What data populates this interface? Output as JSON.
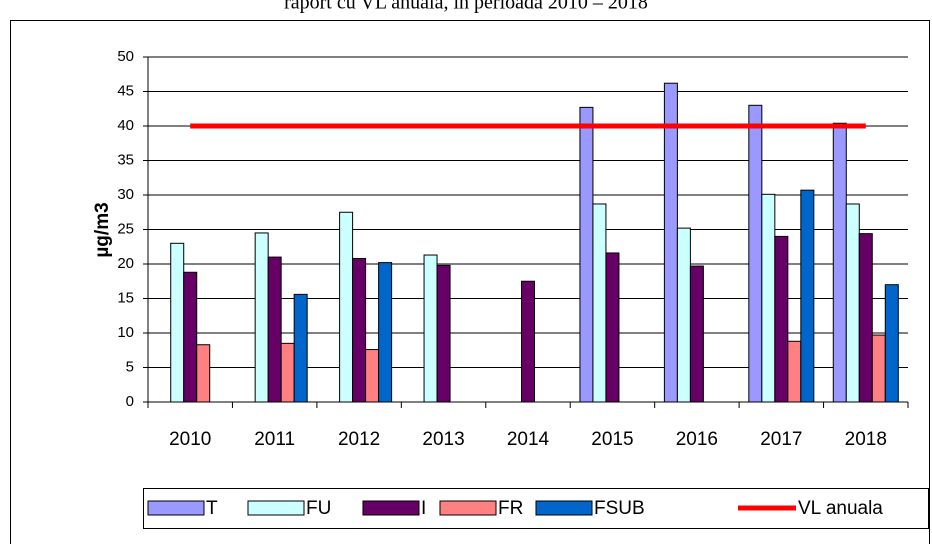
{
  "chart_data": {
    "type": "bar",
    "title": "raport cu VL anuala, in perioada 2010 – 2018",
    "y_label": "µg/m3",
    "categories": [
      "2010",
      "2011",
      "2012",
      "2013",
      "2014",
      "2015",
      "2016",
      "2017",
      "2018"
    ],
    "series": [
      {
        "name": "T",
        "color": "#9999ff",
        "values": [
          null,
          null,
          null,
          null,
          null,
          42.7,
          46.2,
          43,
          40.4
        ]
      },
      {
        "name": "FU",
        "color": "#ccffff",
        "values": [
          23,
          24.5,
          27.5,
          21.3,
          null,
          28.7,
          25.2,
          30.1,
          28.7
        ]
      },
      {
        "name": "I",
        "color": "#660066",
        "values": [
          18.8,
          21,
          20.8,
          19.8,
          17.5,
          21.6,
          19.7,
          24,
          24.4
        ]
      },
      {
        "name": "FR",
        "color": "#ff8080",
        "values": [
          8.3,
          8.5,
          7.6,
          null,
          null,
          null,
          null,
          8.8,
          9.7
        ]
      },
      {
        "name": "FSUB",
        "color": "#0066cc",
        "values": [
          null,
          15.6,
          20.2,
          null,
          null,
          null,
          null,
          30.7,
          17
        ]
      },
      {
        "name": "VL anuala",
        "color": "#ff0000",
        "type": "line",
        "values": [
          40,
          40,
          40,
          40,
          40,
          40,
          40,
          40,
          40
        ]
      }
    ],
    "ylim": [
      0,
      50
    ],
    "yticks": [
      0,
      5,
      10,
      15,
      20,
      25,
      30,
      35,
      40,
      45,
      50
    ],
    "grid": true,
    "legend": "bottom"
  }
}
